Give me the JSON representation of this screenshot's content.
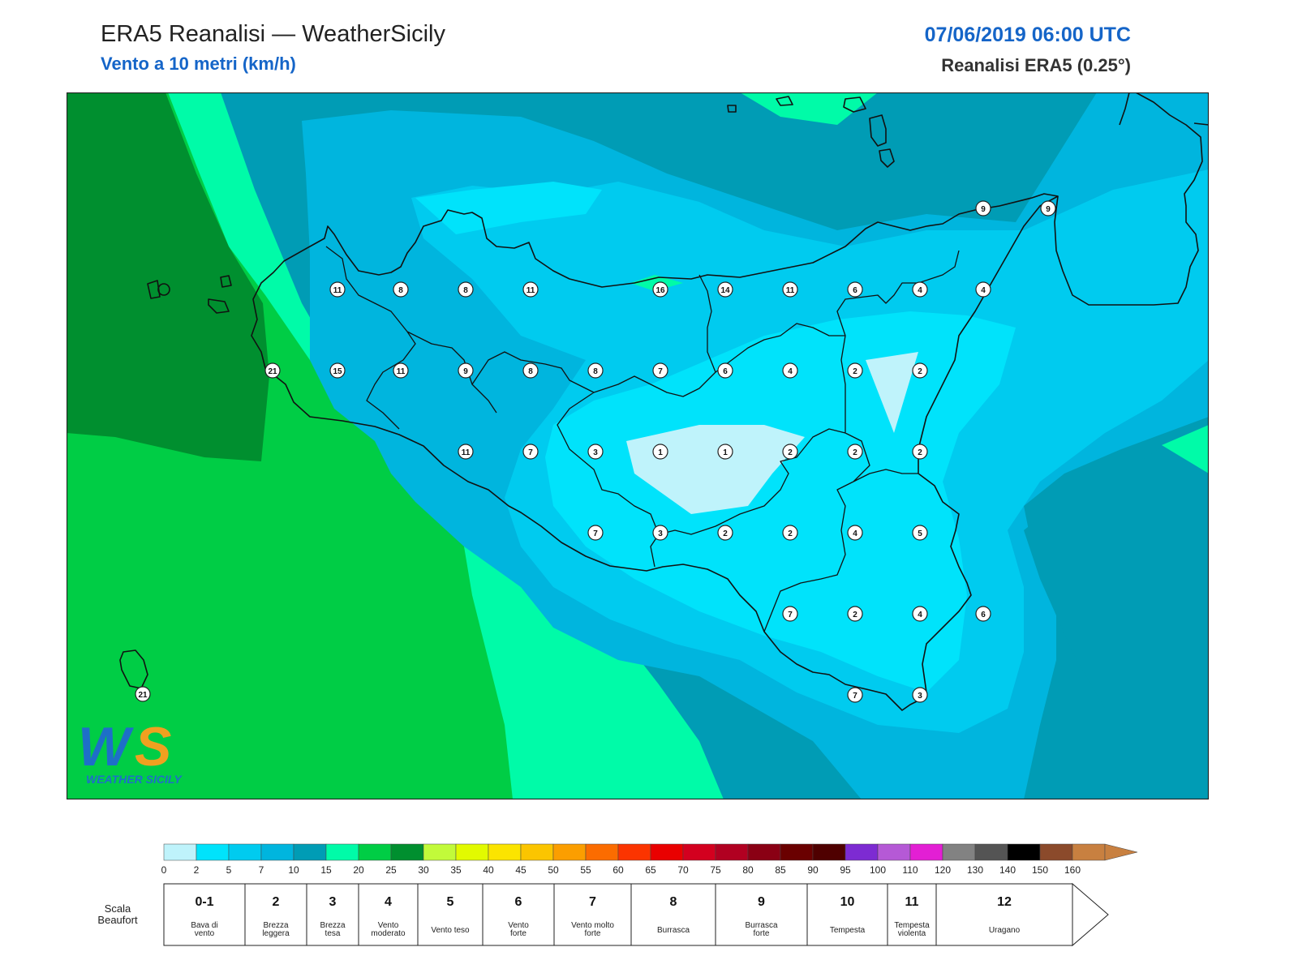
{
  "header": {
    "title": "ERA5 Reanalisi — WeatherSicily",
    "subtitle": "Vento a 10 metri (km/h)",
    "datetime": "07/06/2019 06:00 UTC",
    "resolution": "Reanalisi ERA5 (0.25°)"
  },
  "logo": {
    "text": "WEATHER SICILY",
    "mark": "WS"
  },
  "stations": [
    {
      "v": "9",
      "lx": 1130,
      "ly": 143
    },
    {
      "v": "9",
      "lx": 1210,
      "ly": 143
    },
    {
      "v": "11",
      "lx": 334,
      "ly": 243
    },
    {
      "v": "8",
      "lx": 412,
      "ly": 243
    },
    {
      "v": "8",
      "lx": 492,
      "ly": 243
    },
    {
      "v": "11",
      "lx": 572,
      "ly": 243
    },
    {
      "v": "16",
      "lx": 732,
      "ly": 243
    },
    {
      "v": "14",
      "lx": 812,
      "ly": 243
    },
    {
      "v": "11",
      "lx": 892,
      "ly": 243
    },
    {
      "v": "6",
      "lx": 972,
      "ly": 243
    },
    {
      "v": "4",
      "lx": 1052,
      "ly": 243
    },
    {
      "v": "4",
      "lx": 1130,
      "ly": 243
    },
    {
      "v": "21",
      "lx": 254,
      "ly": 343
    },
    {
      "v": "15",
      "lx": 334,
      "ly": 343
    },
    {
      "v": "11",
      "lx": 412,
      "ly": 343
    },
    {
      "v": "9",
      "lx": 492,
      "ly": 343
    },
    {
      "v": "8",
      "lx": 572,
      "ly": 343
    },
    {
      "v": "8",
      "lx": 652,
      "ly": 343
    },
    {
      "v": "7",
      "lx": 732,
      "ly": 343
    },
    {
      "v": "6",
      "lx": 812,
      "ly": 343
    },
    {
      "v": "4",
      "lx": 892,
      "ly": 343
    },
    {
      "v": "2",
      "lx": 972,
      "ly": 343
    },
    {
      "v": "2",
      "lx": 1052,
      "ly": 343
    },
    {
      "v": "11",
      "lx": 492,
      "ly": 443
    },
    {
      "v": "7",
      "lx": 572,
      "ly": 443
    },
    {
      "v": "3",
      "lx": 652,
      "ly": 443
    },
    {
      "v": "1",
      "lx": 732,
      "ly": 443
    },
    {
      "v": "1",
      "lx": 812,
      "ly": 443
    },
    {
      "v": "2",
      "lx": 892,
      "ly": 443
    },
    {
      "v": "2",
      "lx": 972,
      "ly": 443
    },
    {
      "v": "2",
      "lx": 1052,
      "ly": 443
    },
    {
      "v": "7",
      "lx": 652,
      "ly": 543
    },
    {
      "v": "3",
      "lx": 732,
      "ly": 543
    },
    {
      "v": "2",
      "lx": 812,
      "ly": 543
    },
    {
      "v": "2",
      "lx": 892,
      "ly": 543
    },
    {
      "v": "4",
      "lx": 972,
      "ly": 543
    },
    {
      "v": "5",
      "lx": 1052,
      "ly": 543
    },
    {
      "v": "7",
      "lx": 892,
      "ly": 643
    },
    {
      "v": "2",
      "lx": 972,
      "ly": 643
    },
    {
      "v": "4",
      "lx": 1052,
      "ly": 643
    },
    {
      "v": "6",
      "lx": 1130,
      "ly": 643
    },
    {
      "v": "7",
      "lx": 972,
      "ly": 743
    },
    {
      "v": "3",
      "lx": 1052,
      "ly": 743
    },
    {
      "v": "21",
      "lx": 94,
      "ly": 742
    }
  ],
  "colorbar": {
    "ticks": [
      "0",
      "2",
      "5",
      "7",
      "10",
      "15",
      "20",
      "25",
      "30",
      "35",
      "40",
      "45",
      "50",
      "55",
      "60",
      "65",
      "70",
      "75",
      "80",
      "85",
      "90",
      "95",
      "100",
      "110",
      "120",
      "130",
      "140",
      "150",
      "160"
    ],
    "colors": [
      "#bff3fb",
      "#00e3fb",
      "#00cbef",
      "#00b5de",
      "#009cb5",
      "#00fba8",
      "#00cd45",
      "#008f2f",
      "#c2fa3a",
      "#e2fa00",
      "#fbe400",
      "#fbc500",
      "#fb9e00",
      "#fb6c00",
      "#fb3400",
      "#e90000",
      "#d3001f",
      "#b10021",
      "#8a0014",
      "#6a0000",
      "#4f0000",
      "#7d2bd2",
      "#b559d6",
      "#e31fd4",
      "#828282",
      "#545454",
      "#000000",
      "#8b4a2b",
      "#c88040"
    ]
  },
  "beaufort": {
    "label": "Scala\nBeaufort",
    "label_line1": "Scala",
    "label_line2": "Beaufort",
    "classes": [
      {
        "num": "0-1",
        "desc": [
          "Bava di",
          "vento"
        ]
      },
      {
        "num": "2",
        "desc": [
          "Brezza",
          "leggera"
        ]
      },
      {
        "num": "3",
        "desc": [
          "Brezza",
          "tesa"
        ]
      },
      {
        "num": "4",
        "desc": [
          "Vento",
          "moderato"
        ]
      },
      {
        "num": "5",
        "desc": [
          "Vento teso"
        ]
      },
      {
        "num": "6",
        "desc": [
          "Vento",
          "forte"
        ]
      },
      {
        "num": "7",
        "desc": [
          "Vento molto",
          "forte"
        ]
      },
      {
        "num": "8",
        "desc": [
          "Burrasca"
        ]
      },
      {
        "num": "9",
        "desc": [
          "Burrasca",
          "forte"
        ]
      },
      {
        "num": "10",
        "desc": [
          "Tempesta"
        ]
      },
      {
        "num": "11",
        "desc": [
          "Tempesta",
          "violenta"
        ]
      },
      {
        "num": "12",
        "desc": [
          "Uragano"
        ]
      }
    ]
  },
  "colors": {
    "accent_blue": "#1565c8",
    "band_0_2": "#bff3fb",
    "band_2_5": "#00e3fb",
    "band_5_7": "#00cbef",
    "band_7_10": "#00b5de",
    "band_10_15": "#009cb5",
    "band_15_20": "#00fba8",
    "band_20_25": "#00cd45",
    "band_25_30": "#008f2f"
  }
}
